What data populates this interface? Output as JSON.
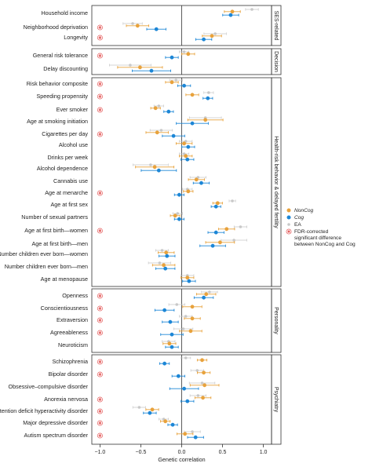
{
  "colors": {
    "noncog": "#E8A23C",
    "cog": "#1C86D6",
    "ea": "#C8C8C8",
    "sig": "#E04040",
    "frame": "#333333"
  },
  "chart_data": {
    "type": "scatter",
    "xlabel": "Genetic correlation",
    "xlim": [
      -1.1,
      1.1
    ],
    "xticks": [
      -1.0,
      -0.5,
      0.0,
      0.5,
      1.0
    ],
    "xtick_labels": [
      "−1.0",
      "−0.5",
      "0.0",
      "0.5",
      "1.0"
    ],
    "legend": {
      "position": "right",
      "entries": [
        {
          "key": "noncog",
          "label": "NonCog",
          "italic": true
        },
        {
          "key": "cog",
          "label": "Cog",
          "italic": true
        },
        {
          "key": "ea",
          "label": "EA",
          "italic": false
        }
      ],
      "sig_lines": [
        "FDR-corrected",
        "significant difference",
        "between NonCog and Cog"
      ]
    },
    "panels": [
      {
        "label": "SES-related",
        "traits": [
          {
            "label": "Household income",
            "sig": false,
            "noncog": [
              0.62,
              0.05
            ],
            "cog": [
              0.6,
              0.05
            ],
            "ea": [
              0.86,
              0.04
            ]
          },
          {
            "label": "Neighborhood deprivation",
            "sig": true,
            "noncog": [
              -0.54,
              0.07
            ],
            "cog": [
              -0.31,
              0.06
            ],
            "ea": [
              -0.6,
              0.06
            ]
          },
          {
            "label": "Longevity",
            "sig": true,
            "noncog": [
              0.37,
              0.06
            ],
            "cog": [
              0.27,
              0.05
            ],
            "ea": [
              0.41,
              0.07
            ]
          }
        ]
      },
      {
        "label": "Decision",
        "traits": [
          {
            "label": "General risk tolerance",
            "sig": true,
            "noncog": [
              0.08,
              0.04
            ],
            "cog": [
              -0.12,
              0.04
            ],
            "ea": [
              0.03,
              0.03
            ]
          },
          {
            "label": "Delay discounting",
            "sig": false,
            "noncog": [
              -0.51,
              0.14
            ],
            "cog": [
              -0.37,
              0.12
            ],
            "ea": [
              -0.63,
              0.13
            ]
          }
        ]
      },
      {
        "label": "Health-risk behavior & delayed fertility",
        "traits": [
          {
            "label": "Risk behavior composite",
            "sig": true,
            "noncog": [
              -0.12,
              0.04
            ],
            "cog": [
              0.03,
              0.04
            ],
            "ea": [
              -0.07,
              0.04
            ]
          },
          {
            "label": "Speeding propensity",
            "sig": true,
            "noncog": [
              0.13,
              0.04
            ],
            "cog": [
              0.32,
              0.03
            ],
            "ea": [
              0.33,
              0.03
            ]
          },
          {
            "label": "Ever smoker",
            "sig": true,
            "noncog": [
              -0.32,
              0.03
            ],
            "cog": [
              -0.16,
              0.03
            ],
            "ea": [
              -0.28,
              0.03
            ]
          },
          {
            "label": "Age at smoking initiation",
            "sig": false,
            "noncog": [
              0.29,
              0.11
            ],
            "cog": [
              0.13,
              0.1
            ],
            "ea": [
              0.29,
              0.1
            ]
          },
          {
            "label": "Cigarettes per day",
            "sig": true,
            "noncog": [
              -0.3,
              0.07
            ],
            "cog": [
              -0.1,
              0.07
            ],
            "ea": [
              -0.25,
              0.07
            ]
          },
          {
            "label": "Alcohol use",
            "sig": false,
            "noncog": [
              0.03,
              0.05
            ],
            "cog": [
              0.08,
              0.04
            ],
            "ea": [
              0.05,
              0.04
            ]
          },
          {
            "label": "Drinks per week",
            "sig": false,
            "noncog": [
              0.05,
              0.04
            ],
            "cog": [
              0.07,
              0.04
            ],
            "ea": [
              0.03,
              0.03
            ]
          },
          {
            "label": "Alcohol dependence",
            "sig": false,
            "noncog": [
              -0.33,
              0.12
            ],
            "cog": [
              -0.28,
              0.11
            ],
            "ea": [
              -0.38,
              0.11
            ]
          },
          {
            "label": "Cannabis use",
            "sig": false,
            "noncog": [
              0.18,
              0.05
            ],
            "cog": [
              0.24,
              0.05
            ],
            "ea": [
              0.2,
              0.05
            ]
          },
          {
            "label": "Age at menarche",
            "sig": true,
            "noncog": [
              0.08,
              0.03
            ],
            "cog": [
              -0.03,
              0.03
            ],
            "ea": [
              0.07,
              0.03
            ]
          },
          {
            "label": "Age at first sex",
            "sig": false,
            "noncog": [
              0.44,
              0.03
            ],
            "cog": [
              0.42,
              0.03
            ],
            "ea": [
              0.62,
              0.02
            ]
          },
          {
            "label": "Number of sexual partners",
            "sig": false,
            "noncog": [
              -0.08,
              0.03
            ],
            "cog": [
              -0.03,
              0.03
            ],
            "ea": [
              -0.05,
              0.03
            ]
          },
          {
            "label": "Age at first birth—women",
            "sig": true,
            "noncog": [
              0.55,
              0.05
            ],
            "cog": [
              0.42,
              0.05
            ],
            "ea": [
              0.72,
              0.04
            ]
          },
          {
            "label": "Age at first birth—men",
            "sig": false,
            "noncog": [
              0.47,
              0.09
            ],
            "cog": [
              0.38,
              0.08
            ],
            "ea": [
              0.64,
              0.08
            ]
          },
          {
            "label": "Number children ever born—women",
            "sig": false,
            "noncog": [
              -0.19,
              0.05
            ],
            "cog": [
              -0.18,
              0.05
            ],
            "ea": [
              -0.24,
              0.04
            ]
          },
          {
            "label": "Number children ever born—men",
            "sig": false,
            "noncog": [
              -0.22,
              0.07
            ],
            "cog": [
              -0.2,
              0.06
            ],
            "ea": [
              -0.27,
              0.07
            ]
          },
          {
            "label": "Age at menopause",
            "sig": false,
            "noncog": [
              0.07,
              0.04
            ],
            "cog": [
              0.09,
              0.04
            ],
            "ea": [
              0.07,
              0.04
            ]
          }
        ]
      },
      {
        "label": "Personality",
        "traits": [
          {
            "label": "Openness",
            "sig": true,
            "noncog": [
              0.3,
              0.06
            ],
            "cog": [
              0.27,
              0.06
            ],
            "ea": [
              0.34,
              0.05
            ]
          },
          {
            "label": "Conscientiousness",
            "sig": true,
            "noncog": [
              0.13,
              0.06
            ],
            "cog": [
              -0.21,
              0.06
            ],
            "ea": [
              -0.06,
              0.05
            ]
          },
          {
            "label": "Extraversion",
            "sig": true,
            "noncog": [
              0.13,
              0.05
            ],
            "cog": [
              -0.14,
              0.05
            ],
            "ea": [
              0.05,
              0.04
            ]
          },
          {
            "label": "Agreeableness",
            "sig": true,
            "noncog": [
              0.11,
              0.07
            ],
            "cog": [
              -0.12,
              0.07
            ],
            "ea": [
              0.02,
              0.06
            ]
          },
          {
            "label": "Neuroticism",
            "sig": false,
            "noncog": [
              -0.15,
              0.04
            ],
            "cog": [
              -0.12,
              0.04
            ],
            "ea": [
              -0.16,
              0.04
            ]
          }
        ]
      },
      {
        "label": "Psychiatry",
        "traits": [
          {
            "label": "Schizophrenia",
            "sig": true,
            "noncog": [
              0.25,
              0.03
            ],
            "cog": [
              -0.21,
              0.03
            ],
            "ea": [
              0.05,
              0.03
            ]
          },
          {
            "label": "Bipolar disorder",
            "sig": true,
            "noncog": [
              0.27,
              0.04
            ],
            "cog": [
              -0.04,
              0.04
            ],
            "ea": [
              0.19,
              0.04
            ]
          },
          {
            "label": "Obsessive–compulsive disorder",
            "sig": false,
            "noncog": [
              0.28,
              0.09
            ],
            "cog": [
              0.03,
              0.09
            ],
            "ea": [
              0.25,
              0.08
            ]
          },
          {
            "label": "Anorexia nervosa",
            "sig": true,
            "noncog": [
              0.26,
              0.05
            ],
            "cog": [
              0.07,
              0.04
            ],
            "ea": [
              0.2,
              0.05
            ]
          },
          {
            "label": "Attention deficit hyperactivity disorder",
            "sig": true,
            "noncog": [
              -0.36,
              0.04
            ],
            "cog": [
              -0.39,
              0.04
            ],
            "ea": [
              -0.52,
              0.04
            ]
          },
          {
            "label": "Major depressive disorder",
            "sig": true,
            "noncog": [
              -0.2,
              0.03
            ],
            "cog": [
              -0.11,
              0.03
            ],
            "ea": [
              -0.22,
              0.03
            ]
          },
          {
            "label": "Autism spectrum disorder",
            "sig": true,
            "noncog": [
              0.04,
              0.05
            ],
            "cog": [
              0.17,
              0.05
            ],
            "ea": [
              0.13,
              0.05
            ]
          }
        ]
      }
    ]
  }
}
